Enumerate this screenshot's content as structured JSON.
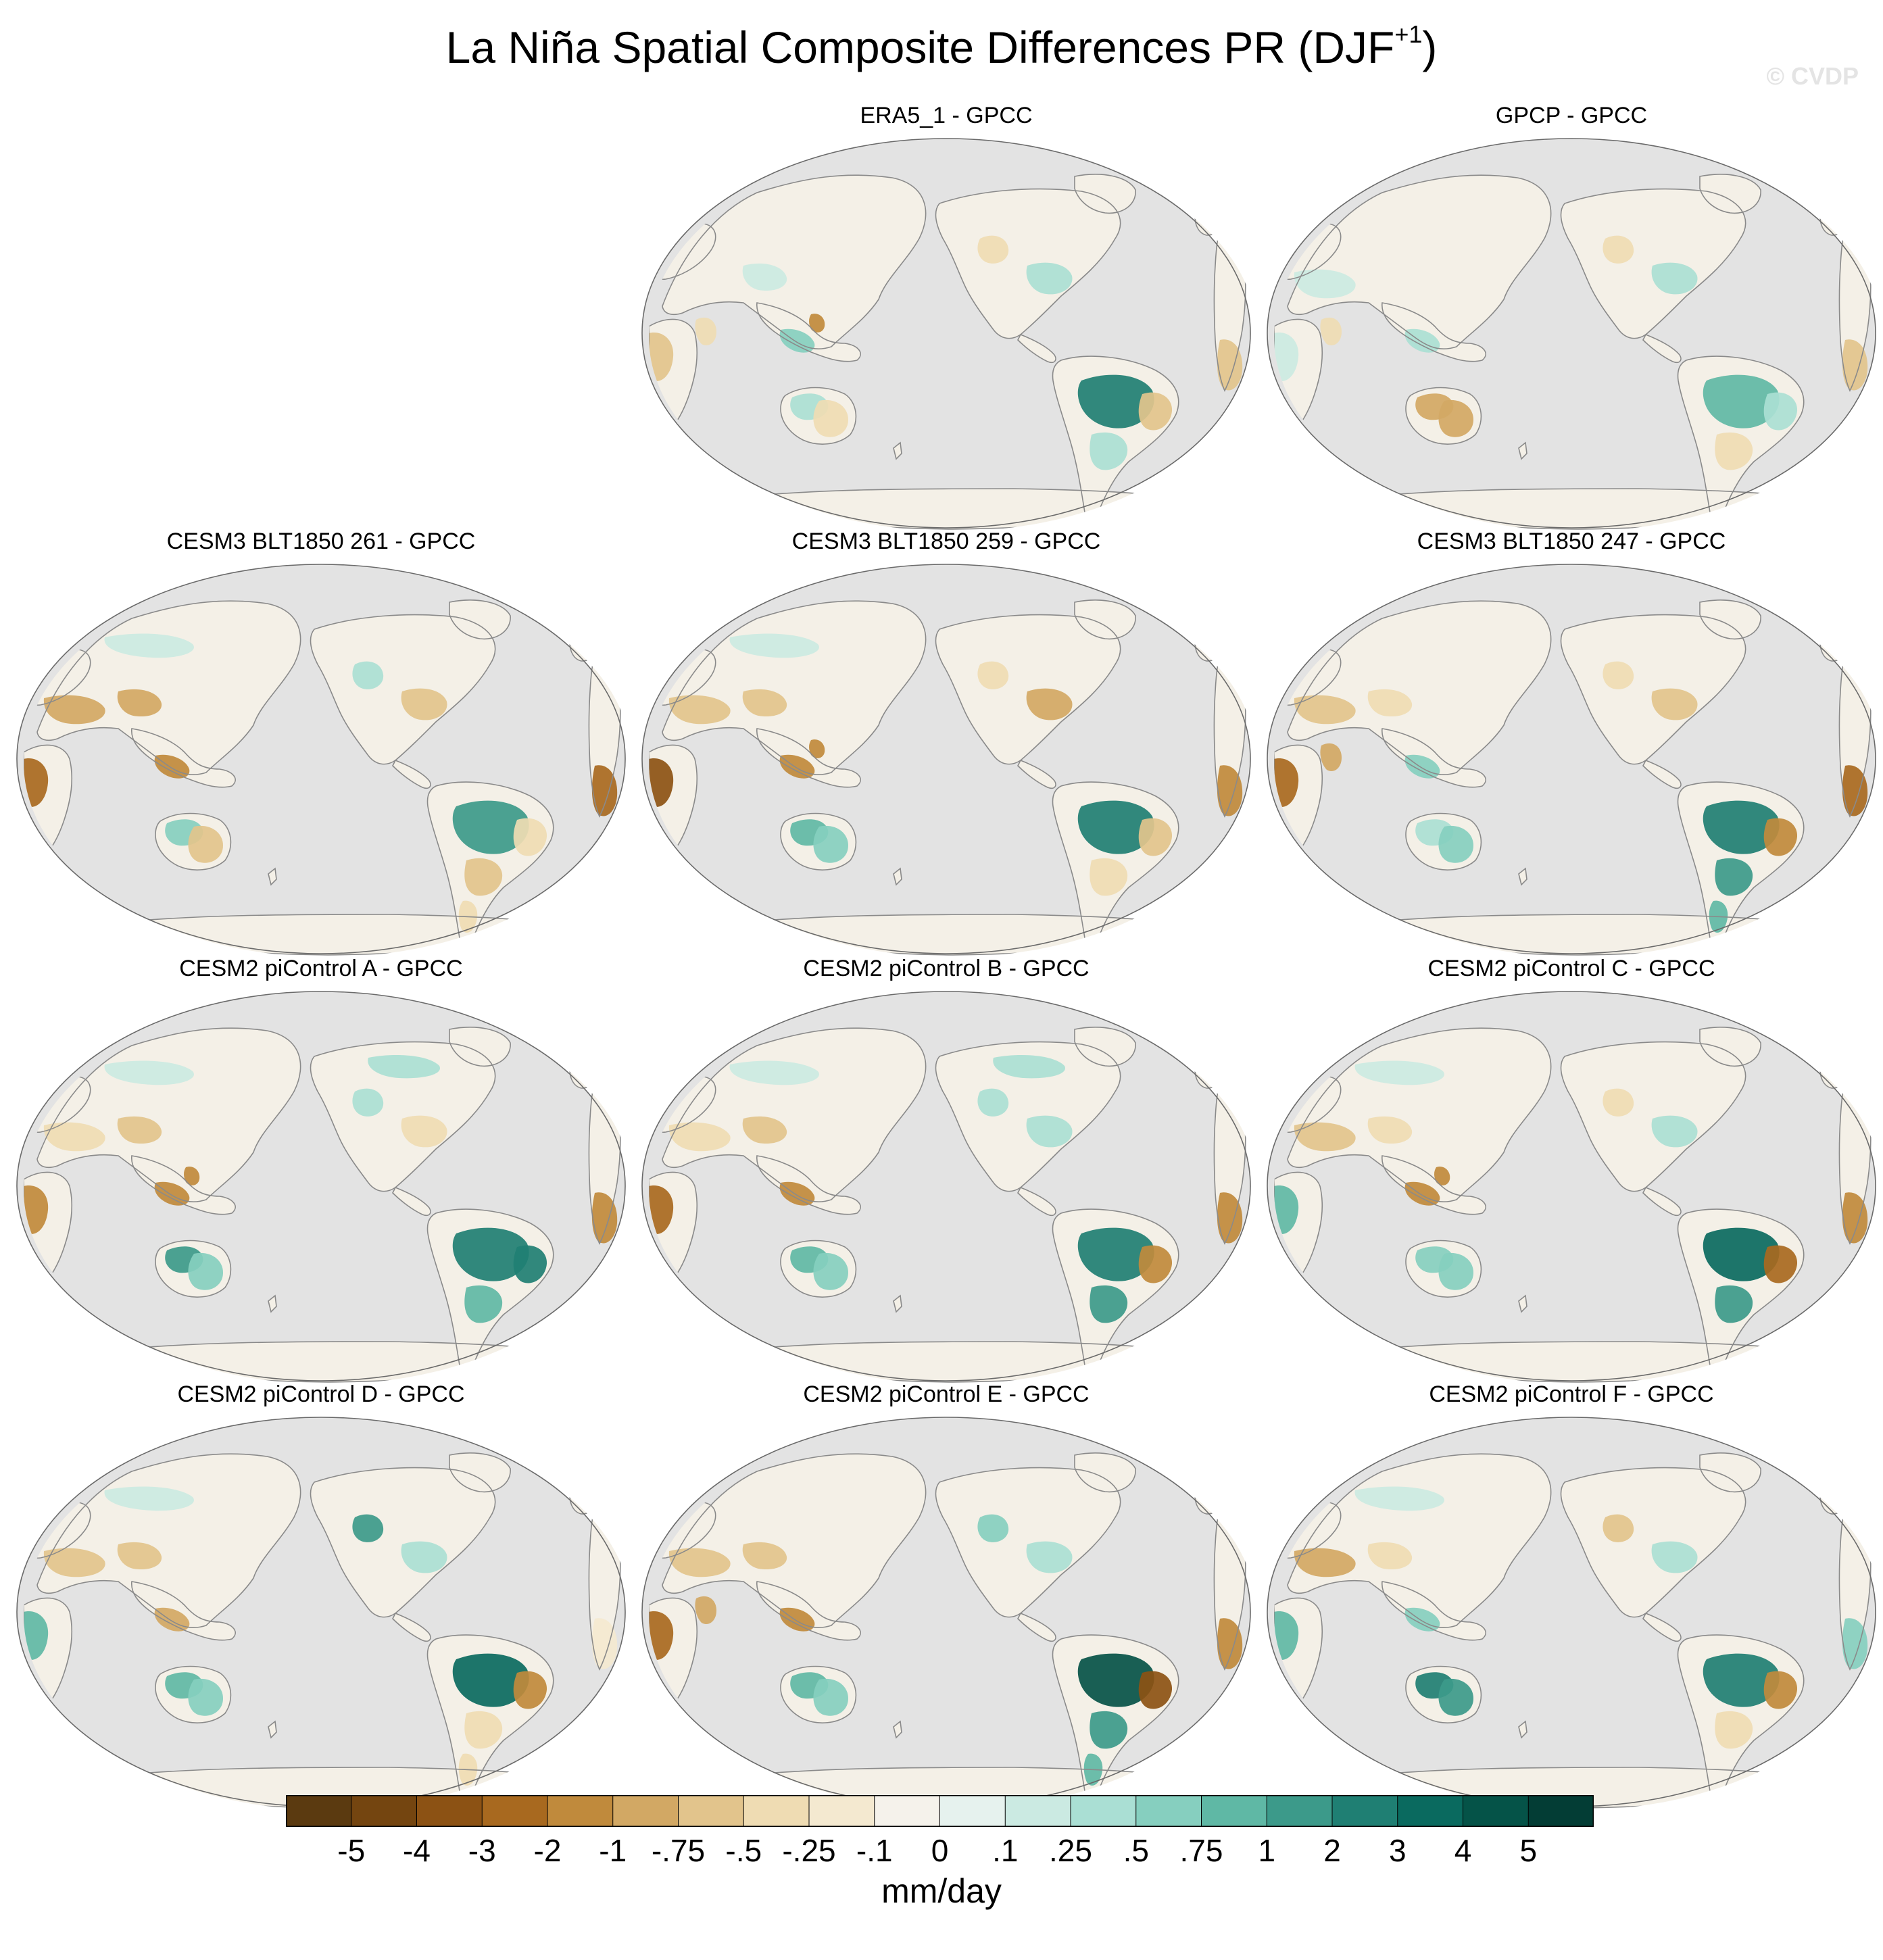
{
  "title": {
    "main": "La Niña Spatial Composite Differences PR (DJF",
    "superscript": "+1",
    "close": ")"
  },
  "watermark": "© CVDP",
  "panels": [
    {
      "label": "ERA5_1 - GPCC",
      "pattern": "era5"
    },
    {
      "label": "GPCP - GPCC",
      "pattern": "gpcp"
    },
    {
      "label": "CESM3 BLT1850 261 - GPCC",
      "pattern": "m261"
    },
    {
      "label": "CESM3 BLT1850 259 - GPCC",
      "pattern": "m259"
    },
    {
      "label": "CESM3 BLT1850 247 - GPCC",
      "pattern": "m247"
    },
    {
      "label": "CESM2 piControl A - GPCC",
      "pattern": "pA"
    },
    {
      "label": "CESM2 piControl B - GPCC",
      "pattern": "pB"
    },
    {
      "label": "CESM2 piControl C - GPCC",
      "pattern": "pC"
    },
    {
      "label": "CESM2 piControl D - GPCC",
      "pattern": "pD"
    },
    {
      "label": "CESM2 piControl E - GPCC",
      "pattern": "pE"
    },
    {
      "label": "CESM2 piControl F - GPCC",
      "pattern": "pF"
    }
  ],
  "colorbar": {
    "units": "mm/day",
    "tick_labels": [
      "-5",
      "-4",
      "-3",
      "-2",
      "-1",
      "-.75",
      "-.5",
      "-.25",
      "-.1",
      "0",
      ".1",
      ".25",
      ".5",
      ".75",
      "1",
      "2",
      "3",
      "4",
      "5"
    ],
    "colors": [
      "#5b3a10",
      "#744510",
      "#8c5214",
      "#a8691f",
      "#c08a3c",
      "#d2a864",
      "#e2c48c",
      "#efdcb3",
      "#f4e9d0",
      "#f5f2eb",
      "#e6f2ee",
      "#cbeae2",
      "#aadfd4",
      "#86cfbf",
      "#5fb8a5",
      "#3c9a8a",
      "#1f7f73",
      "#0a6a5f",
      "#055348",
      "#033d35"
    ]
  },
  "map_style": {
    "ocean": "#e3e3e3",
    "land": "#f4f0e7",
    "coast": "#8a8a8a",
    "frame": "#6a6a6a"
  }
}
